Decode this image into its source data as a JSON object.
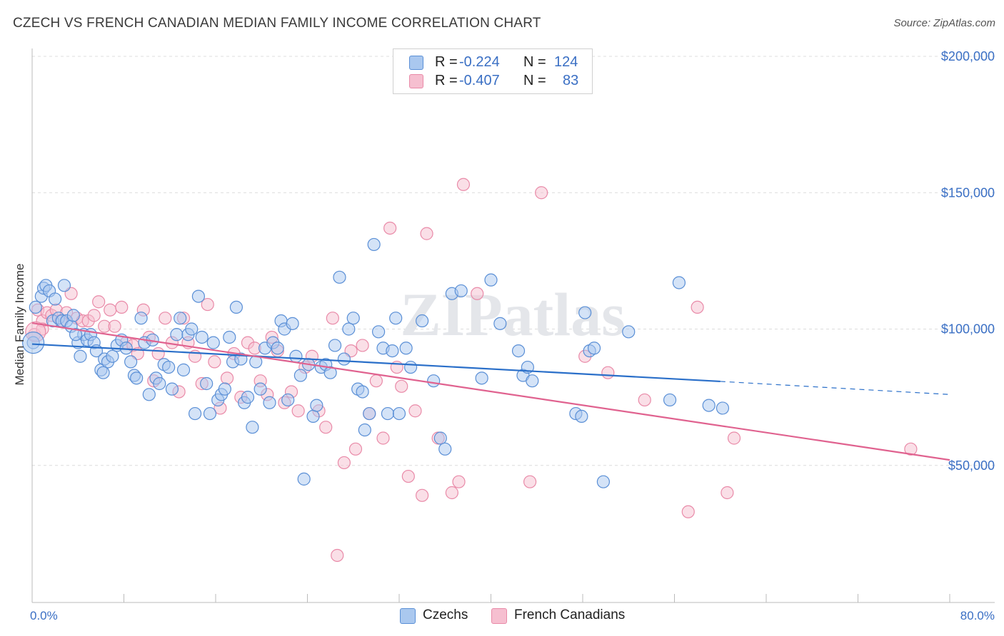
{
  "header": {
    "title": "CZECH VS FRENCH CANADIAN MEDIAN FAMILY INCOME CORRELATION CHART",
    "source": "Source: ZipAtlas.com"
  },
  "legend": {
    "rows": [
      {
        "r_label": "R =",
        "r_value": "-0.224",
        "n_label": "N =",
        "n_value": "124"
      },
      {
        "r_label": "R =",
        "r_value": "-0.407",
        "n_label": "N =",
        "n_value": "83"
      }
    ],
    "bottom": [
      "Czechs",
      "French Canadians"
    ]
  },
  "watermark": "ZIPatlas",
  "colors": {
    "czech_fill": "#aac8ef",
    "czech_stroke": "#5a8fd6",
    "czech_line": "#2a6fc9",
    "fc_fill": "#f6bfd0",
    "fc_stroke": "#e98aa8",
    "fc_line": "#e0628f",
    "axis_text": "#3a6fc4"
  },
  "chart_data": {
    "type": "scatter",
    "title": "CZECH VS FRENCH CANADIAN MEDIAN FAMILY INCOME CORRELATION CHART",
    "xlabel": "",
    "ylabel": "Median Family Income",
    "xlim": [
      0,
      80
    ],
    "ylim": [
      0,
      210000
    ],
    "x_tick_labels": [
      "0.0%",
      "80.0%"
    ],
    "y_tick_labels": [
      "$50,000",
      "$100,000",
      "$150,000",
      "$200,000"
    ],
    "y_ticks": [
      50000,
      100000,
      150000,
      200000
    ],
    "grid": true,
    "legend_position": "top-center",
    "series": [
      {
        "name": "Czechs",
        "R": -0.224,
        "N": 124,
        "trend": {
          "x": [
            0,
            60,
            80
          ],
          "y": [
            94500,
            80800,
            76000
          ],
          "solid_until": 60
        },
        "points": [
          [
            0.1,
            95000
          ],
          [
            0.3,
            108000
          ],
          [
            0.8,
            112000
          ],
          [
            1.0,
            115000
          ],
          [
            1.2,
            116000
          ],
          [
            1.5,
            114000
          ],
          [
            1.8,
            103000
          ],
          [
            2.0,
            111000
          ],
          [
            2.3,
            104000
          ],
          [
            2.6,
            103000
          ],
          [
            2.8,
            116000
          ],
          [
            3.0,
            103000
          ],
          [
            3.4,
            101000
          ],
          [
            3.6,
            105000
          ],
          [
            4.0,
            95000
          ],
          [
            4.2,
            90000
          ],
          [
            4.5,
            98000
          ],
          [
            4.8,
            96000
          ],
          [
            5.1,
            98000
          ],
          [
            5.4,
            95000
          ],
          [
            5.6,
            92000
          ],
          [
            6.0,
            85000
          ],
          [
            6.3,
            89000
          ],
          [
            6.6,
            88000
          ],
          [
            7.0,
            90000
          ],
          [
            7.4,
            94000
          ],
          [
            7.8,
            96000
          ],
          [
            8.2,
            93000
          ],
          [
            8.6,
            88000
          ],
          [
            8.9,
            83000
          ],
          [
            9.1,
            82000
          ],
          [
            9.5,
            104000
          ],
          [
            9.8,
            95000
          ],
          [
            10.2,
            76000
          ],
          [
            10.5,
            96000
          ],
          [
            10.8,
            82000
          ],
          [
            11.1,
            80000
          ],
          [
            11.5,
            87000
          ],
          [
            11.9,
            86000
          ],
          [
            12.2,
            78000
          ],
          [
            12.6,
            98000
          ],
          [
            12.9,
            104000
          ],
          [
            13.2,
            85000
          ],
          [
            13.6,
            98000
          ],
          [
            13.9,
            100000
          ],
          [
            14.2,
            69000
          ],
          [
            14.5,
            112000
          ],
          [
            14.8,
            97000
          ],
          [
            15.2,
            80000
          ],
          [
            15.5,
            69000
          ],
          [
            15.8,
            95000
          ],
          [
            16.2,
            74000
          ],
          [
            16.5,
            76000
          ],
          [
            16.8,
            78000
          ],
          [
            17.2,
            97000
          ],
          [
            17.5,
            88000
          ],
          [
            17.8,
            108000
          ],
          [
            18.2,
            89000
          ],
          [
            18.5,
            73000
          ],
          [
            18.8,
            75000
          ],
          [
            19.2,
            64000
          ],
          [
            19.5,
            88000
          ],
          [
            19.9,
            78000
          ],
          [
            20.3,
            93000
          ],
          [
            20.7,
            73000
          ],
          [
            21.0,
            95000
          ],
          [
            21.4,
            93000
          ],
          [
            21.7,
            103000
          ],
          [
            22.0,
            100000
          ],
          [
            22.3,
            74000
          ],
          [
            22.7,
            102000
          ],
          [
            23.0,
            90000
          ],
          [
            23.4,
            83000
          ],
          [
            23.7,
            45000
          ],
          [
            24.1,
            87000
          ],
          [
            24.5,
            68000
          ],
          [
            24.8,
            72000
          ],
          [
            25.2,
            86000
          ],
          [
            25.6,
            87000
          ],
          [
            26.0,
            84000
          ],
          [
            26.4,
            94000
          ],
          [
            26.8,
            119000
          ],
          [
            27.2,
            89000
          ],
          [
            27.6,
            100000
          ],
          [
            28.0,
            104000
          ],
          [
            28.4,
            78000
          ],
          [
            28.8,
            77000
          ],
          [
            29.0,
            63000
          ],
          [
            29.4,
            69000
          ],
          [
            29.8,
            131000
          ],
          [
            30.2,
            99000
          ],
          [
            30.6,
            93000
          ],
          [
            31.0,
            69000
          ],
          [
            31.4,
            92000
          ],
          [
            31.7,
            104000
          ],
          [
            32.0,
            69000
          ],
          [
            32.6,
            93000
          ],
          [
            33.0,
            86000
          ],
          [
            34.0,
            103000
          ],
          [
            35.0,
            81000
          ],
          [
            35.6,
            60000
          ],
          [
            36.0,
            56000
          ],
          [
            36.6,
            113000
          ],
          [
            37.4,
            114000
          ],
          [
            39.2,
            82000
          ],
          [
            40.0,
            118000
          ],
          [
            40.8,
            102000
          ],
          [
            42.4,
            92000
          ],
          [
            42.8,
            83000
          ],
          [
            43.2,
            86000
          ],
          [
            43.6,
            81000
          ],
          [
            47.4,
            69000
          ],
          [
            47.9,
            68000
          ],
          [
            48.2,
            106000
          ],
          [
            48.6,
            92000
          ],
          [
            49.0,
            93000
          ],
          [
            49.8,
            44000
          ],
          [
            52.0,
            99000
          ],
          [
            55.6,
            74000
          ],
          [
            56.4,
            117000
          ],
          [
            59.0,
            72000
          ],
          [
            60.2,
            71000
          ],
          [
            3.8,
            98000
          ],
          [
            6.2,
            84000
          ]
        ]
      },
      {
        "name": "French Canadians",
        "R": -0.407,
        "N": 83,
        "trend": {
          "x": [
            0,
            80
          ],
          "y": [
            102200,
            52000
          ]
        },
        "points": [
          [
            0.2,
            98000
          ],
          [
            0.5,
            107000
          ],
          [
            0.9,
            103000
          ],
          [
            1.3,
            106000
          ],
          [
            1.7,
            105000
          ],
          [
            2.1,
            107000
          ],
          [
            2.5,
            103000
          ],
          [
            3.0,
            106000
          ],
          [
            3.4,
            113000
          ],
          [
            3.9,
            104000
          ],
          [
            4.4,
            103000
          ],
          [
            4.9,
            103000
          ],
          [
            5.4,
            105000
          ],
          [
            5.8,
            110000
          ],
          [
            6.3,
            101000
          ],
          [
            6.8,
            107000
          ],
          [
            7.2,
            101000
          ],
          [
            7.8,
            108000
          ],
          [
            8.2,
            95000
          ],
          [
            8.8,
            94000
          ],
          [
            9.2,
            91000
          ],
          [
            9.7,
            107000
          ],
          [
            10.2,
            97000
          ],
          [
            10.6,
            81000
          ],
          [
            11.0,
            91000
          ],
          [
            11.6,
            104000
          ],
          [
            12.2,
            95000
          ],
          [
            12.8,
            77000
          ],
          [
            13.2,
            104000
          ],
          [
            13.6,
            95000
          ],
          [
            14.2,
            90000
          ],
          [
            14.8,
            80000
          ],
          [
            15.3,
            109000
          ],
          [
            15.9,
            88000
          ],
          [
            16.4,
            71000
          ],
          [
            17.0,
            82000
          ],
          [
            17.6,
            91000
          ],
          [
            18.2,
            75000
          ],
          [
            18.8,
            95000
          ],
          [
            19.4,
            93000
          ],
          [
            19.9,
            81000
          ],
          [
            20.5,
            76000
          ],
          [
            20.9,
            97000
          ],
          [
            21.4,
            92000
          ],
          [
            22.0,
            73000
          ],
          [
            22.6,
            77000
          ],
          [
            23.2,
            70000
          ],
          [
            23.8,
            86000
          ],
          [
            24.4,
            90000
          ],
          [
            25.0,
            70000
          ],
          [
            25.6,
            64000
          ],
          [
            26.2,
            104000
          ],
          [
            26.6,
            17000
          ],
          [
            27.2,
            51000
          ],
          [
            27.8,
            92000
          ],
          [
            28.2,
            56000
          ],
          [
            28.8,
            94000
          ],
          [
            29.4,
            69000
          ],
          [
            30.0,
            81000
          ],
          [
            30.6,
            60000
          ],
          [
            31.2,
            137000
          ],
          [
            31.8,
            86000
          ],
          [
            32.2,
            79000
          ],
          [
            32.8,
            46000
          ],
          [
            33.4,
            70000
          ],
          [
            34.0,
            39000
          ],
          [
            34.4,
            135000
          ],
          [
            35.4,
            60000
          ],
          [
            36.6,
            40000
          ],
          [
            37.2,
            44000
          ],
          [
            37.6,
            153000
          ],
          [
            38.8,
            113000
          ],
          [
            43.4,
            44000
          ],
          [
            44.4,
            150000
          ],
          [
            48.2,
            90000
          ],
          [
            50.2,
            84000
          ],
          [
            53.4,
            74000
          ],
          [
            57.2,
            33000
          ],
          [
            58.0,
            108000
          ],
          [
            60.6,
            40000
          ],
          [
            61.2,
            60000
          ],
          [
            76.6,
            56000
          ],
          [
            0.9,
            100000
          ]
        ]
      }
    ]
  }
}
